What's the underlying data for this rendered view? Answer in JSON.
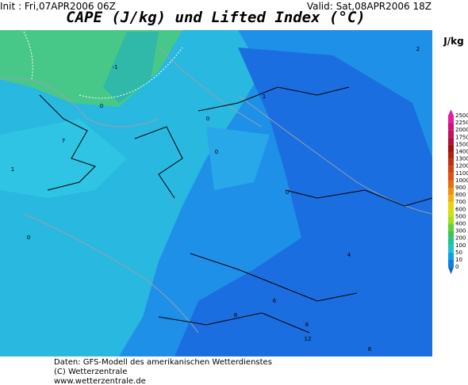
{
  "header": {
    "init": "Init : Fri,07APR2006 06Z",
    "valid": "Valid: Sat,08APR2006 18Z",
    "title": "CAPE (J/kg) und Lifted Index (°C)"
  },
  "colorbar": {
    "unit": "J/kg",
    "levels": [
      {
        "value": 2500,
        "color": "#e020a0"
      },
      {
        "value": 2250,
        "color": "#d01080"
      },
      {
        "value": 2000,
        "color": "#c01060"
      },
      {
        "value": 1750,
        "color": "#b01040"
      },
      {
        "value": 1500,
        "color": "#a01010"
      },
      {
        "value": 1400,
        "color": "#b02010"
      },
      {
        "value": 1300,
        "color": "#c03010"
      },
      {
        "value": 1200,
        "color": "#d04010"
      },
      {
        "value": 1100,
        "color": "#e05010"
      },
      {
        "value": 1000,
        "color": "#e07010"
      },
      {
        "value": 900,
        "color": "#f09010"
      },
      {
        "value": 800,
        "color": "#f0b010"
      },
      {
        "value": 700,
        "color": "#f0d010"
      },
      {
        "value": 600,
        "color": "#d0e010"
      },
      {
        "value": 500,
        "color": "#a0e020"
      },
      {
        "value": 400,
        "color": "#60d040"
      },
      {
        "value": 300,
        "color": "#40c060"
      },
      {
        "value": 200,
        "color": "#20c0a0"
      },
      {
        "value": 100,
        "color": "#20c0d0"
      },
      {
        "value": 50,
        "color": "#10a0e0"
      },
      {
        "value": 10,
        "color": "#1080e0"
      },
      {
        "value": 0,
        "color": "#1060d0"
      }
    ]
  },
  "contour_labels": [
    "-1",
    "0",
    "2",
    "1",
    "7",
    "0",
    "0",
    "1",
    "0",
    "0",
    "4",
    "6",
    "8",
    "6",
    "12",
    "8"
  ],
  "footer": {
    "lines": [
      "Daten: GFS-Modell des amerikanischen Wetterdienstes",
      "(C) Wetterzentrale",
      "www.wetterzentrale.de"
    ]
  }
}
